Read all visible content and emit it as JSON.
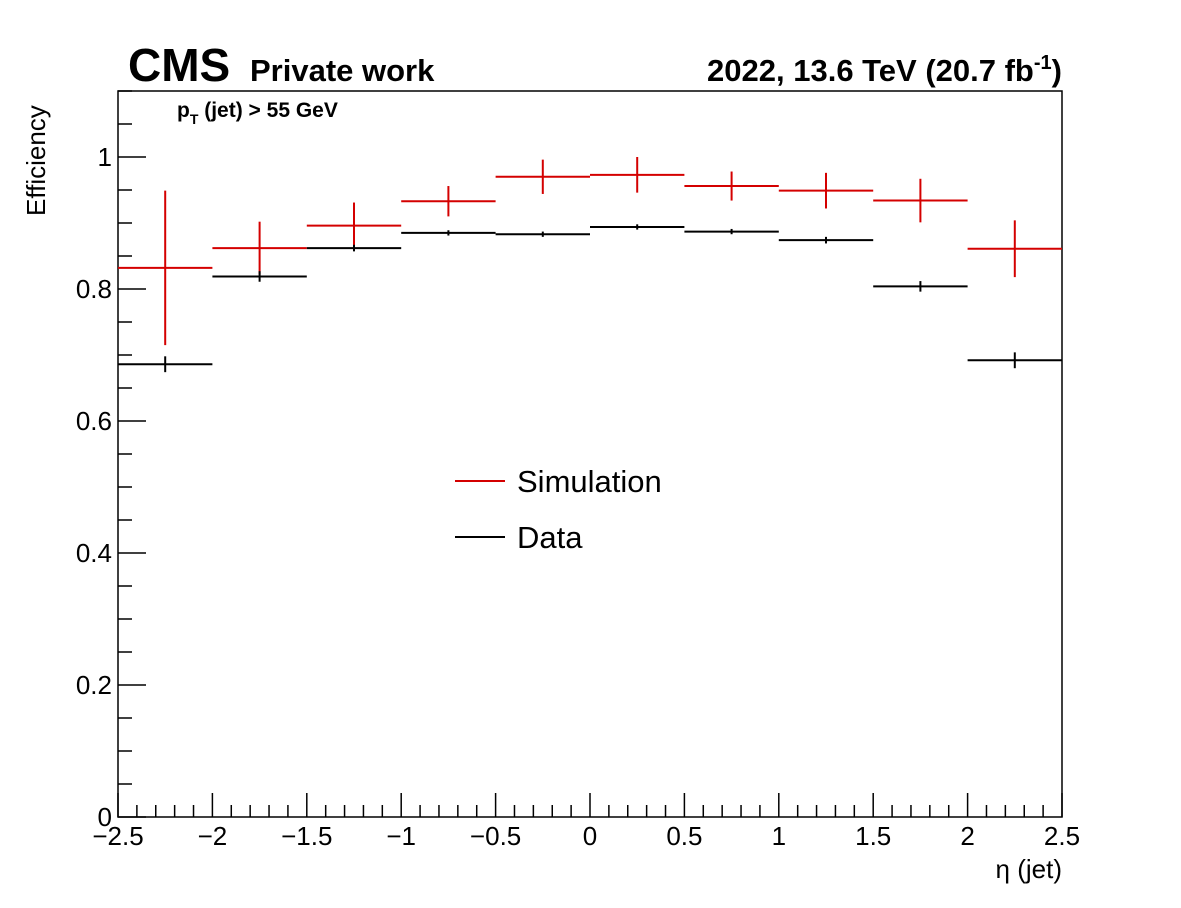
{
  "header": {
    "experiment": "CMS",
    "status": "Private work",
    "lumi_prefix": "2022, 13.6 TeV (20.7 fb",
    "lumi_exp": "-1",
    "lumi_suffix": ")"
  },
  "cut_label": {
    "p": "p",
    "sub": "T",
    "rest": " (jet) > 55 GeV"
  },
  "colors": {
    "simulation": "#d40000",
    "data": "#000000",
    "axis": "#000000"
  },
  "chart_data": {
    "type": "scatter",
    "style": "histogram-with-error-bars",
    "xlabel": "η (jet)",
    "ylabel": "Efficiency",
    "xlim": [
      -2.5,
      2.5
    ],
    "ylim": [
      0,
      1.1
    ],
    "x_ticks": [
      -2.5,
      -2,
      -1.5,
      -1,
      -0.5,
      0,
      0.5,
      1,
      1.5,
      2,
      2.5
    ],
    "x_tick_labels": [
      "−2.5",
      "−2",
      "−1.5",
      "−1",
      "−0.5",
      "0",
      "0.5",
      "1",
      "1.5",
      "2",
      "2.5"
    ],
    "y_ticks": [
      0,
      0.2,
      0.4,
      0.6,
      0.8,
      1
    ],
    "y_tick_labels": [
      "0",
      "0.2",
      "0.4",
      "0.6",
      "0.8",
      "1"
    ],
    "bin_edges": [
      -2.5,
      -2,
      -1.5,
      -1,
      -0.5,
      0,
      0.5,
      1,
      1.5,
      2,
      2.5
    ],
    "grid": false,
    "legend_position": "center",
    "series": [
      {
        "name": "Simulation",
        "color": "#d40000",
        "values": [
          0.832,
          0.862,
          0.896,
          0.933,
          0.97,
          0.973,
          0.956,
          0.949,
          0.934,
          0.861
        ],
        "errors": [
          0.117,
          0.04,
          0.035,
          0.023,
          0.026,
          0.027,
          0.022,
          0.027,
          0.033,
          0.043
        ]
      },
      {
        "name": "Data",
        "color": "#000000",
        "values": [
          0.686,
          0.819,
          0.862,
          0.885,
          0.883,
          0.894,
          0.887,
          0.874,
          0.804,
          0.692
        ],
        "errors": [
          0.012,
          0.008,
          0.005,
          0.004,
          0.004,
          0.004,
          0.004,
          0.005,
          0.008,
          0.012
        ]
      }
    ]
  }
}
